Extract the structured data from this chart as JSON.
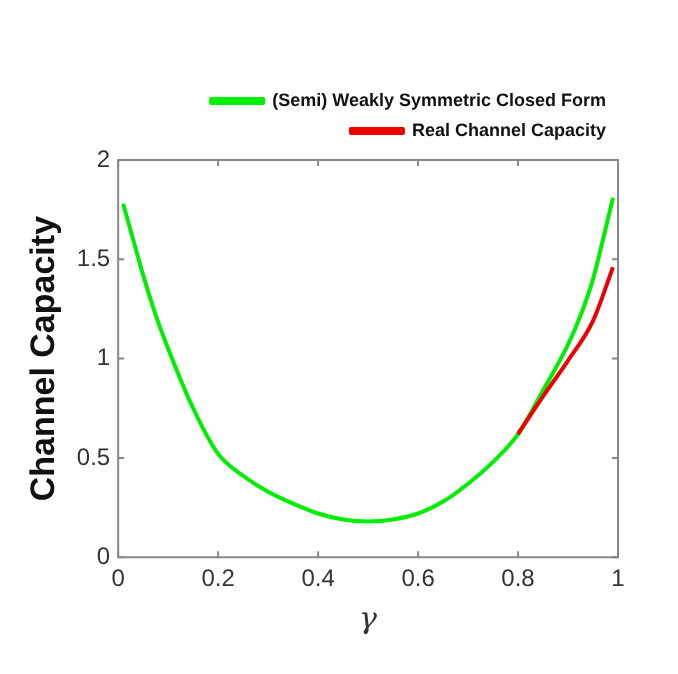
{
  "chart_data": {
    "type": "line",
    "xlabel": "γ",
    "ylabel": "Channel Capacity",
    "xlim": [
      0,
      1
    ],
    "ylim": [
      0,
      2
    ],
    "xticks": [
      0,
      0.2,
      0.4,
      0.6,
      0.8,
      1
    ],
    "yticks": [
      0,
      0.5,
      1,
      1.5,
      2
    ],
    "grid": false,
    "legend": "top right",
    "marker": "none",
    "line_style": "solid",
    "series": [
      {
        "name": "(Semi) Weakly Symmetric Closed Form",
        "color": "#00ee00",
        "x": [
          0.01,
          0.03,
          0.05,
          0.075,
          0.1,
          0.15,
          0.2,
          0.25,
          0.3,
          0.35,
          0.4,
          0.45,
          0.5,
          0.55,
          0.6,
          0.65,
          0.7,
          0.75,
          0.8,
          0.85,
          0.9,
          0.93,
          0.95,
          0.97,
          0.99
        ],
        "values": [
          1.78,
          1.6,
          1.42,
          1.22,
          1.05,
          0.75,
          0.52,
          0.41,
          0.33,
          0.27,
          0.22,
          0.19,
          0.18,
          0.19,
          0.22,
          0.28,
          0.37,
          0.48,
          0.62,
          0.84,
          1.07,
          1.25,
          1.4,
          1.6,
          1.81
        ]
      },
      {
        "name": "Real Channel Capacity",
        "color": "#ee0000",
        "x": [
          0.8,
          0.85,
          0.9,
          0.95,
          0.99
        ],
        "values": [
          0.62,
          0.81,
          0.99,
          1.19,
          1.46
        ]
      }
    ]
  }
}
